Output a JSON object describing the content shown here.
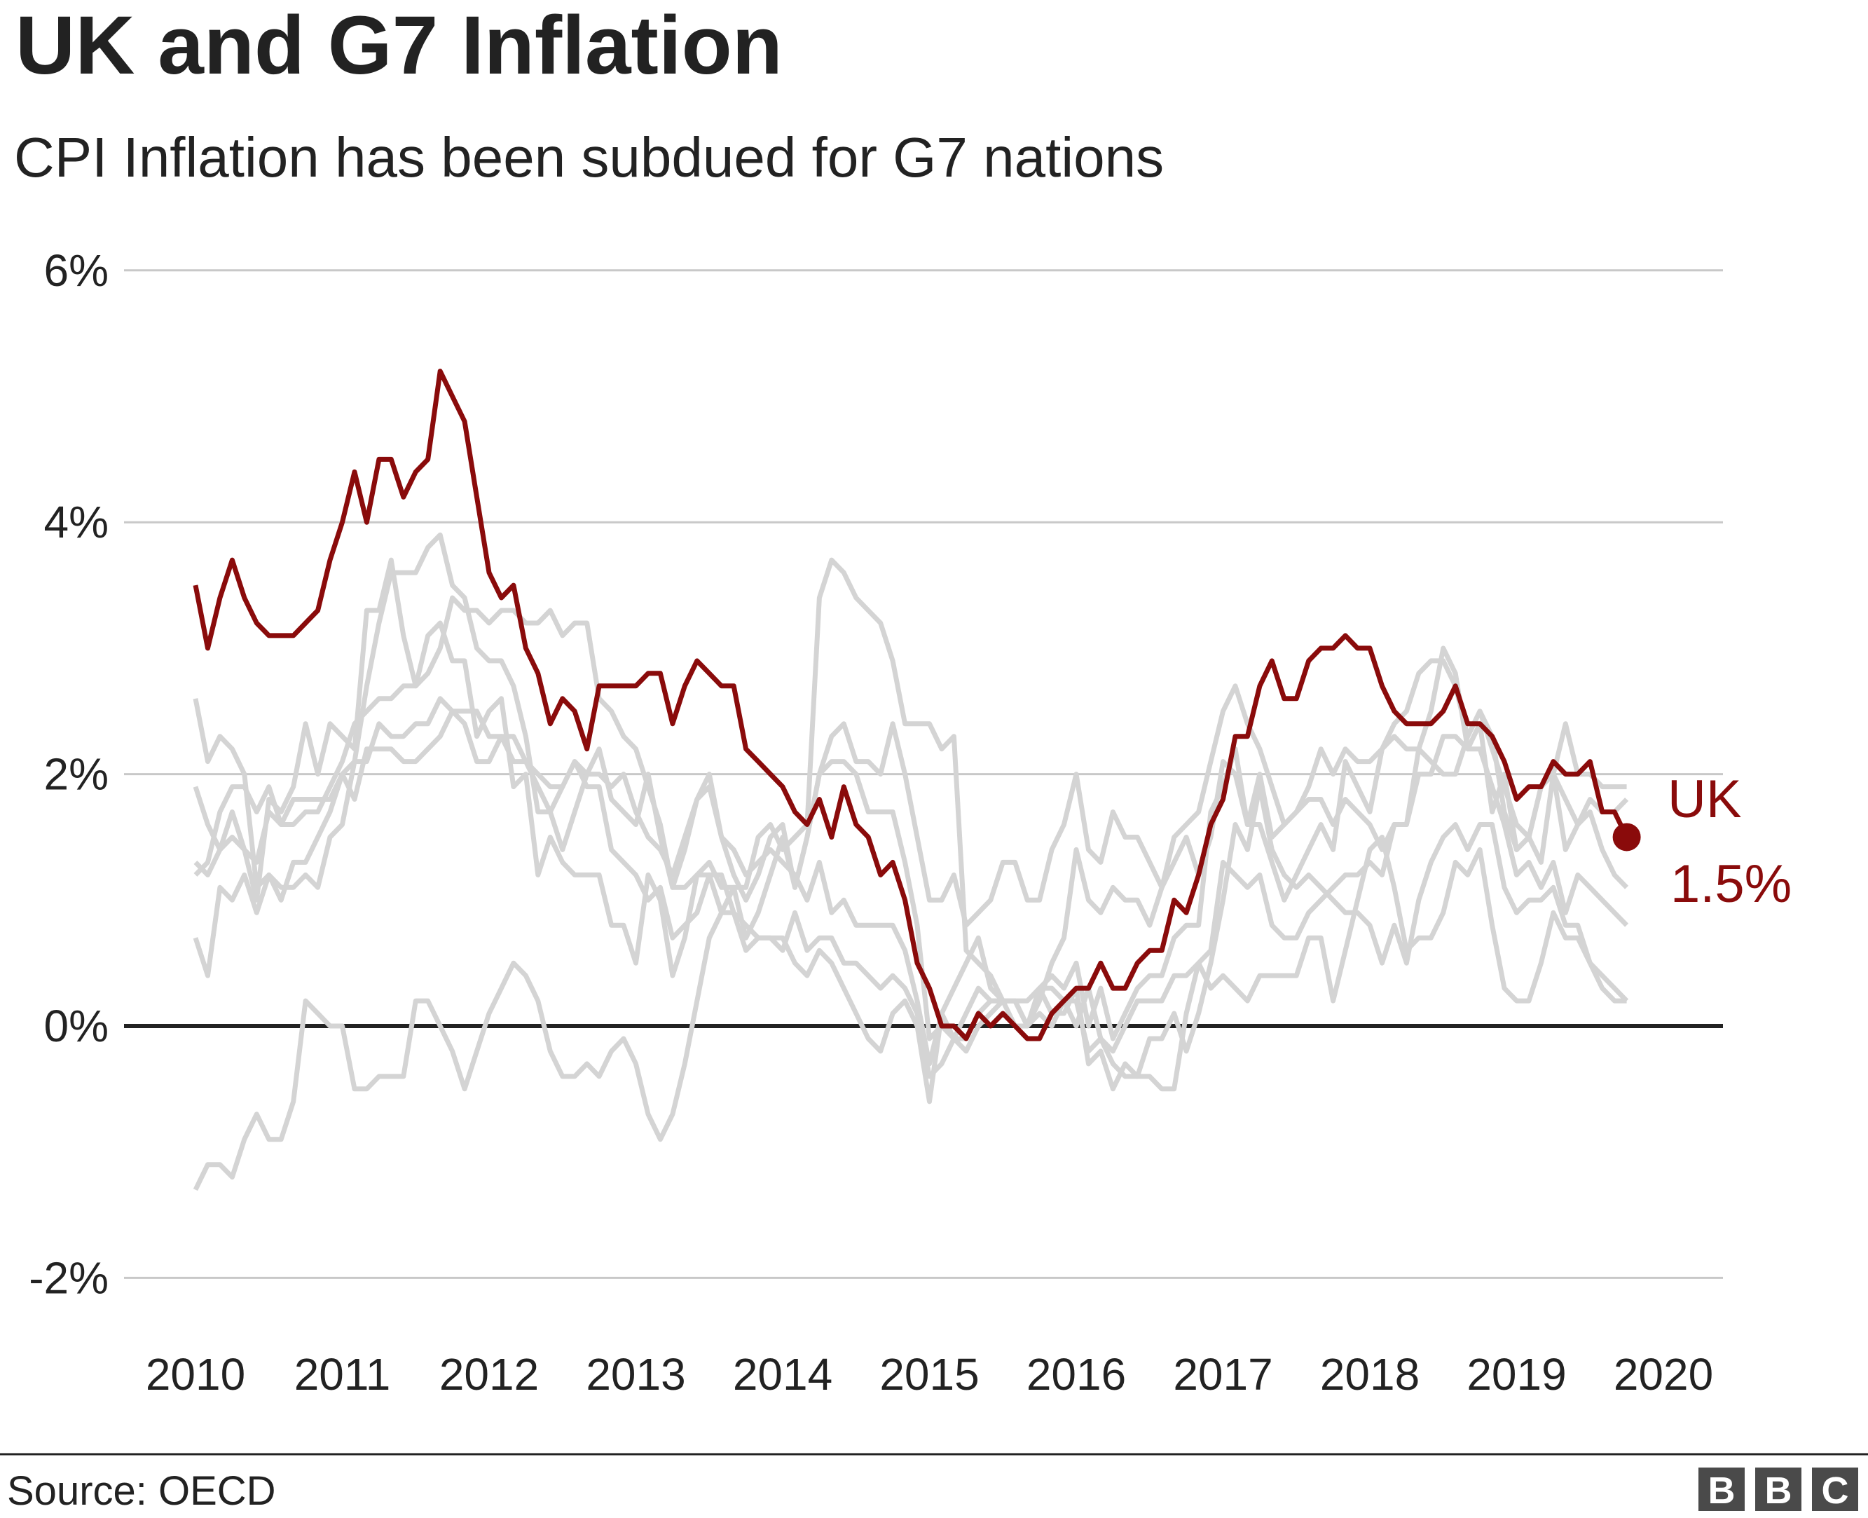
{
  "chart_data": {
    "type": "line",
    "title": "UK and G7 Inflation",
    "subtitle": "CPI Inflation has been subdued for G7 nations",
    "source": "Source: OECD",
    "logo": "BBC",
    "xlim": [
      2010,
      2020
    ],
    "ylim": [
      -2,
      6
    ],
    "x_ticks": [
      "2010",
      "2011",
      "2012",
      "2013",
      "2014",
      "2015",
      "2016",
      "2017",
      "2018",
      "2019",
      "2020"
    ],
    "y_ticks": [
      {
        "value": 6,
        "label": "6%"
      },
      {
        "value": 4,
        "label": "4%"
      },
      {
        "value": 2,
        "label": "2%"
      },
      {
        "value": 0,
        "label": "0%"
      },
      {
        "value": -2,
        "label": "-2%"
      }
    ],
    "grid": true,
    "x_start": "2010-01",
    "frequency": "monthly",
    "colors": {
      "highlight": "#8a0b0b",
      "others": "#d4d4d4",
      "grid": "#c8c8c8",
      "zero": "#222222"
    },
    "highlight": {
      "name": "UK",
      "end_label": "1.5%",
      "values": [
        3.5,
        3.0,
        3.4,
        3.7,
        3.4,
        3.2,
        3.1,
        3.1,
        3.1,
        3.2,
        3.3,
        3.7,
        4.0,
        4.4,
        4.0,
        4.5,
        4.5,
        4.2,
        4.4,
        4.5,
        5.2,
        5.0,
        4.8,
        4.2,
        3.6,
        3.4,
        3.5,
        3.0,
        2.8,
        2.4,
        2.6,
        2.5,
        2.2,
        2.7,
        2.7,
        2.7,
        2.7,
        2.8,
        2.8,
        2.4,
        2.7,
        2.9,
        2.8,
        2.7,
        2.7,
        2.2,
        2.1,
        2.0,
        1.9,
        1.7,
        1.6,
        1.8,
        1.5,
        1.9,
        1.6,
        1.5,
        1.2,
        1.3,
        1.0,
        0.5,
        0.3,
        0.0,
        0.0,
        -0.1,
        0.1,
        0.0,
        0.1,
        0.0,
        -0.1,
        -0.1,
        0.1,
        0.2,
        0.3,
        0.3,
        0.5,
        0.3,
        0.3,
        0.5,
        0.6,
        0.6,
        1.0,
        0.9,
        1.2,
        1.6,
        1.8,
        2.3,
        2.3,
        2.7,
        2.9,
        2.6,
        2.6,
        2.9,
        3.0,
        3.0,
        3.1,
        3.0,
        3.0,
        2.7,
        2.5,
        2.4,
        2.4,
        2.4,
        2.5,
        2.7,
        2.4,
        2.4,
        2.3,
        2.1,
        1.8,
        1.9,
        1.9,
        2.1,
        2.0,
        2.0,
        2.1,
        1.7,
        1.7,
        1.5
      ]
    },
    "series": [
      {
        "values": [
          2.6,
          2.1,
          2.3,
          2.2,
          2.0,
          1.1,
          1.2,
          1.1,
          1.1,
          1.2,
          1.1,
          1.5,
          1.6,
          2.1,
          2.7,
          3.2,
          3.6,
          3.6,
          3.6,
          3.8,
          3.9,
          3.5,
          3.4,
          3.0,
          2.9,
          2.9,
          2.7,
          2.3,
          1.7,
          1.7,
          1.4,
          1.7,
          2.0,
          2.2,
          1.8,
          1.7,
          1.6,
          2.0,
          1.5,
          1.1,
          1.4,
          1.8,
          2.0,
          1.5,
          1.2,
          1.0,
          1.2,
          1.5,
          1.6,
          1.1,
          1.5,
          2.0,
          2.1,
          2.1,
          2.0,
          1.7,
          1.7,
          1.7,
          1.3,
          0.8,
          -0.1,
          0.0,
          -0.1,
          -0.2,
          0.0,
          0.1,
          0.2,
          0.2,
          0.0,
          0.2,
          0.5,
          0.7,
          1.4,
          1.0,
          0.9,
          1.1,
          1.0,
          1.0,
          0.8,
          1.1,
          1.5,
          1.6,
          1.7,
          2.1,
          2.5,
          2.7,
          2.4,
          2.2,
          1.9,
          1.6,
          1.7,
          1.9,
          2.2,
          2.0,
          2.2,
          2.1,
          2.1,
          2.2,
          2.4,
          2.5,
          2.8,
          2.9,
          2.9,
          2.7,
          2.3,
          2.5,
          2.2,
          1.9,
          1.6,
          1.5,
          1.9,
          2.0,
          1.8,
          1.6,
          1.8,
          1.7,
          1.7,
          1.8
        ]
      },
      {
        "values": [
          -1.3,
          -1.1,
          -1.1,
          -1.2,
          -0.9,
          -0.7,
          -0.9,
          -0.9,
          -0.6,
          0.2,
          0.1,
          0.0,
          0.0,
          -0.5,
          -0.5,
          -0.4,
          -0.4,
          -0.4,
          0.2,
          0.2,
          0.0,
          -0.2,
          -0.5,
          -0.2,
          0.1,
          0.3,
          0.5,
          0.4,
          0.2,
          -0.2,
          -0.4,
          -0.4,
          -0.3,
          -0.4,
          -0.2,
          -0.1,
          -0.3,
          -0.7,
          -0.9,
          -0.7,
          -0.3,
          0.2,
          0.7,
          0.9,
          1.1,
          1.1,
          1.5,
          1.6,
          1.4,
          1.5,
          1.6,
          3.4,
          3.7,
          3.6,
          3.4,
          3.3,
          3.2,
          2.9,
          2.4,
          2.4,
          2.4,
          2.2,
          2.3,
          0.6,
          0.5,
          0.4,
          0.2,
          0.2,
          0.0,
          0.3,
          0.3,
          0.2,
          0.0,
          0.3,
          -0.1,
          -0.3,
          -0.4,
          -0.4,
          -0.4,
          -0.5,
          -0.5,
          0.1,
          0.5,
          0.3,
          0.4,
          0.3,
          0.2,
          0.4,
          0.4,
          0.4,
          0.4,
          0.7,
          0.7,
          0.2,
          0.6,
          1.0,
          1.4,
          1.5,
          1.1,
          0.6,
          0.7,
          0.7,
          0.9,
          1.3,
          1.2,
          1.4,
          0.8,
          0.3,
          0.2,
          0.2,
          0.5,
          0.9,
          0.7,
          0.7,
          0.5,
          0.3,
          0.2,
          0.2
        ]
      },
      {
        "values": [
          0.7,
          0.4,
          1.1,
          1.0,
          1.2,
          0.9,
          1.2,
          1.0,
          1.3,
          1.3,
          1.5,
          1.7,
          2.0,
          2.1,
          2.1,
          2.4,
          2.3,
          2.3,
          2.4,
          2.4,
          2.6,
          2.5,
          2.4,
          2.1,
          2.1,
          2.3,
          2.1,
          2.1,
          1.9,
          1.7,
          1.9,
          2.1,
          2.0,
          2.0,
          1.9,
          2.0,
          1.7,
          1.5,
          1.4,
          1.2,
          1.5,
          1.8,
          1.9,
          1.5,
          1.4,
          1.2,
          1.3,
          1.4,
          1.3,
          1.2,
          1.0,
          1.3,
          0.9,
          1.0,
          0.8,
          0.8,
          0.8,
          0.8,
          0.6,
          0.2,
          -0.3,
          0.1,
          0.3,
          0.5,
          0.7,
          0.3,
          0.2,
          0.2,
          0.0,
          0.3,
          0.4,
          0.3,
          0.5,
          0.0,
          0.3,
          -0.1,
          0.1,
          0.3,
          0.4,
          0.4,
          0.7,
          0.8,
          0.8,
          1.7,
          1.9,
          2.2,
          1.6,
          2.0,
          1.5,
          1.6,
          1.7,
          1.8,
          1.8,
          1.6,
          1.8,
          1.7,
          1.6,
          1.4,
          1.6,
          1.6,
          2.2,
          2.1,
          2.0,
          2.0,
          2.3,
          2.5,
          2.3,
          1.7,
          1.4,
          1.5,
          1.3,
          2.0,
          1.4,
          1.6,
          1.7,
          1.4,
          1.2,
          1.1
        ]
      },
      {
        "values": [
          1.2,
          1.3,
          1.7,
          1.9,
          1.9,
          1.7,
          1.9,
          1.6,
          1.8,
          1.8,
          1.8,
          1.8,
          2.0,
          1.8,
          2.2,
          2.2,
          2.2,
          2.1,
          2.1,
          2.2,
          2.3,
          2.5,
          2.5,
          2.5,
          2.3,
          2.3,
          2.3,
          2.1,
          2.0,
          1.9,
          1.9,
          2.1,
          1.9,
          1.9,
          1.4,
          1.3,
          1.2,
          1.0,
          1.1,
          0.7,
          0.8,
          0.9,
          1.2,
          0.9,
          0.9,
          0.6,
          0.7,
          0.7,
          0.6,
          0.9,
          0.6,
          0.7,
          0.7,
          0.5,
          0.5,
          0.4,
          0.3,
          0.4,
          0.3,
          0.1,
          -0.4,
          -0.3,
          -0.1,
          0.1,
          0.3,
          0.2,
          0.2,
          0.0,
          0.0,
          0.1,
          0.0,
          0.2,
          0.2,
          -0.2,
          -0.1,
          -0.2,
          0.0,
          0.2,
          0.2,
          0.2,
          0.4,
          0.4,
          0.5,
          0.6,
          1.3,
          1.2,
          1.1,
          1.2,
          0.8,
          0.7,
          0.7,
          0.9,
          1.0,
          1.1,
          1.2,
          1.2,
          1.3,
          1.2,
          1.6,
          1.6,
          2.0,
          2.0,
          2.3,
          2.3,
          2.2,
          2.2,
          1.9,
          1.6,
          1.2,
          1.3,
          1.1,
          1.3,
          0.9,
          1.2,
          1.1,
          1.0,
          0.9,
          0.8
        ]
      },
      {
        "values": [
          1.3,
          1.2,
          1.4,
          1.5,
          1.4,
          1.3,
          1.7,
          1.6,
          1.6,
          1.7,
          1.7,
          1.9,
          2.1,
          2.4,
          2.5,
          2.6,
          2.6,
          2.7,
          2.7,
          2.8,
          3.0,
          3.4,
          3.3,
          3.3,
          3.2,
          3.3,
          3.3,
          3.2,
          3.2,
          3.3,
          3.1,
          3.2,
          3.2,
          2.6,
          2.5,
          2.3,
          2.2,
          1.9,
          1.6,
          1.1,
          1.1,
          1.2,
          1.2,
          1.2,
          0.9,
          0.8,
          0.7,
          0.7,
          0.7,
          0.5,
          0.4,
          0.6,
          0.5,
          0.3,
          0.1,
          -0.1,
          -0.2,
          0.1,
          0.2,
          0.0,
          -0.6,
          0.1,
          -0.1,
          -0.1,
          0.1,
          0.2,
          0.2,
          0.2,
          0.2,
          0.3,
          0.1,
          0.1,
          0.3,
          -0.3,
          -0.2,
          -0.5,
          -0.3,
          -0.4,
          -0.1,
          -0.1,
          0.1,
          -0.2,
          0.1,
          0.5,
          1.0,
          1.6,
          1.4,
          1.9,
          1.4,
          1.2,
          1.1,
          1.2,
          1.1,
          1.0,
          0.9,
          0.9,
          0.8,
          0.5,
          0.8,
          0.5,
          1.0,
          1.3,
          1.5,
          1.6,
          1.4,
          1.6,
          1.6,
          1.1,
          0.9,
          1.0,
          1.0,
          1.1,
          0.8,
          0.8,
          0.5,
          0.4,
          0.3,
          0.2
        ]
      },
      {
        "values": [
          1.9,
          1.6,
          1.4,
          1.7,
          1.4,
          1.0,
          1.8,
          1.7,
          1.9,
          2.4,
          2.0,
          2.4,
          2.3,
          2.2,
          3.3,
          3.3,
          3.7,
          3.1,
          2.7,
          3.1,
          3.2,
          2.9,
          2.9,
          2.3,
          2.5,
          2.6,
          1.9,
          2.0,
          1.2,
          1.5,
          1.3,
          1.2,
          1.2,
          1.2,
          0.8,
          0.8,
          0.5,
          1.2,
          1.0,
          0.4,
          0.7,
          1.2,
          1.3,
          1.1,
          1.1,
          0.7,
          0.9,
          1.2,
          1.5,
          1.1,
          1.5,
          2.0,
          2.3,
          2.4,
          2.1,
          2.1,
          2.0,
          2.4,
          2.0,
          1.5,
          1.0,
          1.0,
          1.2,
          0.8,
          0.9,
          1.0,
          1.3,
          1.3,
          1.0,
          1.0,
          1.4,
          1.6,
          2.0,
          1.4,
          1.3,
          1.7,
          1.5,
          1.5,
          1.3,
          1.1,
          1.3,
          1.5,
          1.2,
          1.5,
          2.1,
          2.0,
          1.6,
          1.6,
          1.3,
          1.0,
          1.2,
          1.4,
          1.6,
          1.4,
          2.1,
          1.9,
          1.7,
          2.2,
          2.3,
          2.2,
          2.2,
          2.5,
          3.0,
          2.8,
          2.2,
          2.4,
          1.7,
          2.0,
          1.4,
          1.5,
          1.9,
          2.0,
          2.4,
          2.0,
          2.0,
          1.9,
          1.9,
          1.9
        ]
      }
    ]
  }
}
